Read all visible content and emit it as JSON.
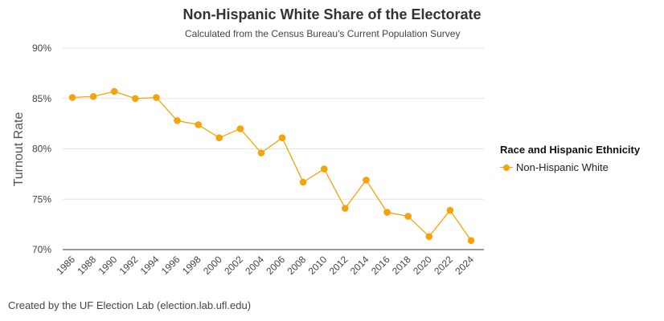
{
  "chart_data": {
    "type": "line",
    "title": "Non-Hispanic White Share of the Electorate",
    "subtitle": "Calculated from the Census Bureau's Current Population Survey",
    "xlabel": "",
    "ylabel": "Turnout Rate",
    "ylim": [
      70,
      90
    ],
    "yticks": [
      70,
      75,
      80,
      85,
      90
    ],
    "ytick_labels": [
      "70%",
      "75%",
      "80%",
      "85%",
      "90%"
    ],
    "grid": true,
    "legend_position": "right",
    "legend_title": "Race and Hispanic Ethnicity",
    "categories": [
      "1986",
      "1988",
      "1990",
      "1992",
      "1994",
      "1996",
      "1998",
      "2000",
      "2002",
      "2004",
      "2006",
      "2008",
      "2010",
      "2012",
      "2014",
      "2016",
      "2018",
      "2020",
      "2022",
      "2024"
    ],
    "series": [
      {
        "name": "Non-Hispanic White",
        "color": "#f5a30a",
        "values": [
          85.1,
          85.2,
          85.7,
          85.0,
          85.1,
          82.8,
          82.4,
          81.1,
          82.0,
          79.6,
          81.1,
          76.7,
          78.0,
          74.1,
          76.9,
          73.7,
          73.3,
          71.3,
          73.9,
          70.9
        ]
      }
    ]
  },
  "credit": "Created by the UF Election Lab (election.lab.ufl.edu)"
}
